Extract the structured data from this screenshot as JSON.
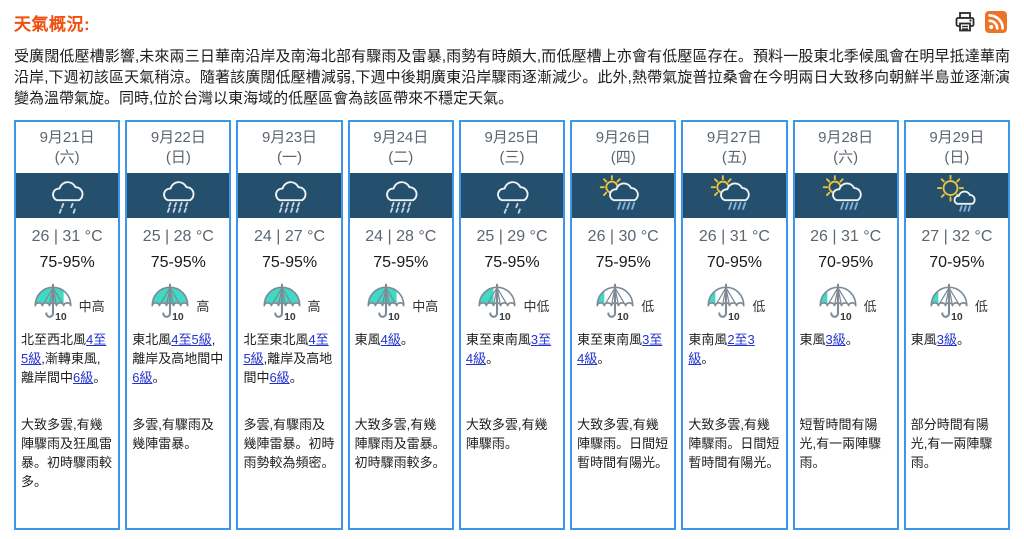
{
  "header": {
    "title": "天氣概況:",
    "icons": [
      "print-icon",
      "rss-icon"
    ]
  },
  "summary": "受廣闊低壓槽影響,未來兩三日華南沿岸及南海北部有驟雨及雷暴,雨勢有時頗大,而低壓槽上亦會有低壓區存在。預料一股東北季候風會在明早抵達華南沿岸,下週初該區天氣稍涼。隨著該廣闊低壓槽減弱,下週中後期廣東沿岸驟雨逐漸減少。此外,熱帶氣旋普拉桑會在今明兩日大致移向朝鮮半島並逐漸演變為溫帶氣旋。同時,位於台灣以東海域的低壓區會為該區帶來不穩定天氣。",
  "colors": {
    "title_orange": "#f04f0f",
    "banner_navy": "#24506e",
    "card_border_blue": "#3d96e8",
    "umbrella_teal": "#41d9c5",
    "link_blue": "#2333cc",
    "rss_orange": "#ec7426",
    "muted_gray_text": "#5b6670"
  },
  "psr_scale_note": "umbrella icon labelled 10",
  "days": [
    {
      "date": "9月21日",
      "weekday": "(六)",
      "icon": "rain-light",
      "temp": "26 | 31 °C",
      "humidity": "75-95%",
      "psr": "中高",
      "psr_fill": 0.8,
      "wind": [
        {
          "t": "北至西北風"
        },
        {
          "t": "4至5級",
          "link": true
        },
        {
          "t": ",漸轉東風,離岸間中"
        },
        {
          "t": "6級",
          "link": true
        },
        {
          "t": "。"
        }
      ],
      "weather": "大致多雲,有幾陣驟雨及狂風雷暴。初時驟雨較多。"
    },
    {
      "date": "9月22日",
      "weekday": "(日)",
      "icon": "rain-heavy",
      "temp": "25 | 28 °C",
      "humidity": "75-95%",
      "psr": "高",
      "psr_fill": 1,
      "wind": [
        {
          "t": "東北風"
        },
        {
          "t": "4至5級",
          "link": true
        },
        {
          "t": ",離岸及高地間中"
        },
        {
          "t": "6級",
          "link": true
        },
        {
          "t": "。"
        }
      ],
      "weather": "多雲,有驟雨及幾陣雷暴。"
    },
    {
      "date": "9月23日",
      "weekday": "(一)",
      "icon": "rain-heavy",
      "temp": "24 | 27 °C",
      "humidity": "75-95%",
      "psr": "高",
      "psr_fill": 1,
      "wind": [
        {
          "t": "北至東北風"
        },
        {
          "t": "4至5級",
          "link": true
        },
        {
          "t": ",離岸及高地間中"
        },
        {
          "t": "6級",
          "link": true
        },
        {
          "t": "。"
        }
      ],
      "weather": "多雲,有驟雨及幾陣雷暴。初時雨勢較為頻密。"
    },
    {
      "date": "9月24日",
      "weekday": "(二)",
      "icon": "rain-heavy",
      "temp": "24 | 28 °C",
      "humidity": "75-95%",
      "psr": "中高",
      "psr_fill": 0.8,
      "wind": [
        {
          "t": "東風"
        },
        {
          "t": "4級",
          "link": true
        },
        {
          "t": "。"
        }
      ],
      "weather": "大致多雲,有幾陣驟雨及雷暴。初時驟雨較多。"
    },
    {
      "date": "9月25日",
      "weekday": "(三)",
      "icon": "rain-light",
      "temp": "25 | 29 °C",
      "humidity": "75-95%",
      "psr": "中低",
      "psr_fill": 0.4,
      "wind": [
        {
          "t": "東至東南風"
        },
        {
          "t": "3至4級",
          "link": true
        },
        {
          "t": "。"
        }
      ],
      "weather": "大致多雲,有幾陣驟雨。"
    },
    {
      "date": "9月26日",
      "weekday": "(四)",
      "icon": "shower-sun",
      "temp": "26 | 30 °C",
      "humidity": "75-95%",
      "psr": "低",
      "psr_fill": 0.2,
      "wind": [
        {
          "t": "東至東南風"
        },
        {
          "t": "3至4級",
          "link": true
        },
        {
          "t": "。"
        }
      ],
      "weather": "大致多雲,有幾陣驟雨。日間短暫時間有陽光。"
    },
    {
      "date": "9月27日",
      "weekday": "(五)",
      "icon": "shower-sun",
      "temp": "26 | 31 °C",
      "humidity": "70-95%",
      "psr": "低",
      "psr_fill": 0.2,
      "wind": [
        {
          "t": "東南風"
        },
        {
          "t": "2至3級",
          "link": true
        },
        {
          "t": "。"
        }
      ],
      "weather": "大致多雲,有幾陣驟雨。日間短暫時間有陽光。"
    },
    {
      "date": "9月28日",
      "weekday": "(六)",
      "icon": "shower-sun",
      "temp": "26 | 31 °C",
      "humidity": "70-95%",
      "psr": "低",
      "psr_fill": 0.2,
      "wind": [
        {
          "t": "東風"
        },
        {
          "t": "3級",
          "link": true
        },
        {
          "t": "。"
        }
      ],
      "weather": "短暫時間有陽光,有一兩陣驟雨。"
    },
    {
      "date": "9月29日",
      "weekday": "(日)",
      "icon": "sun-shower",
      "temp": "27 | 32 °C",
      "humidity": "70-95%",
      "psr": "低",
      "psr_fill": 0.2,
      "wind": [
        {
          "t": "東風"
        },
        {
          "t": "3級",
          "link": true
        },
        {
          "t": "。"
        }
      ],
      "weather": "部分時間有陽光,有一兩陣驟雨。"
    }
  ]
}
